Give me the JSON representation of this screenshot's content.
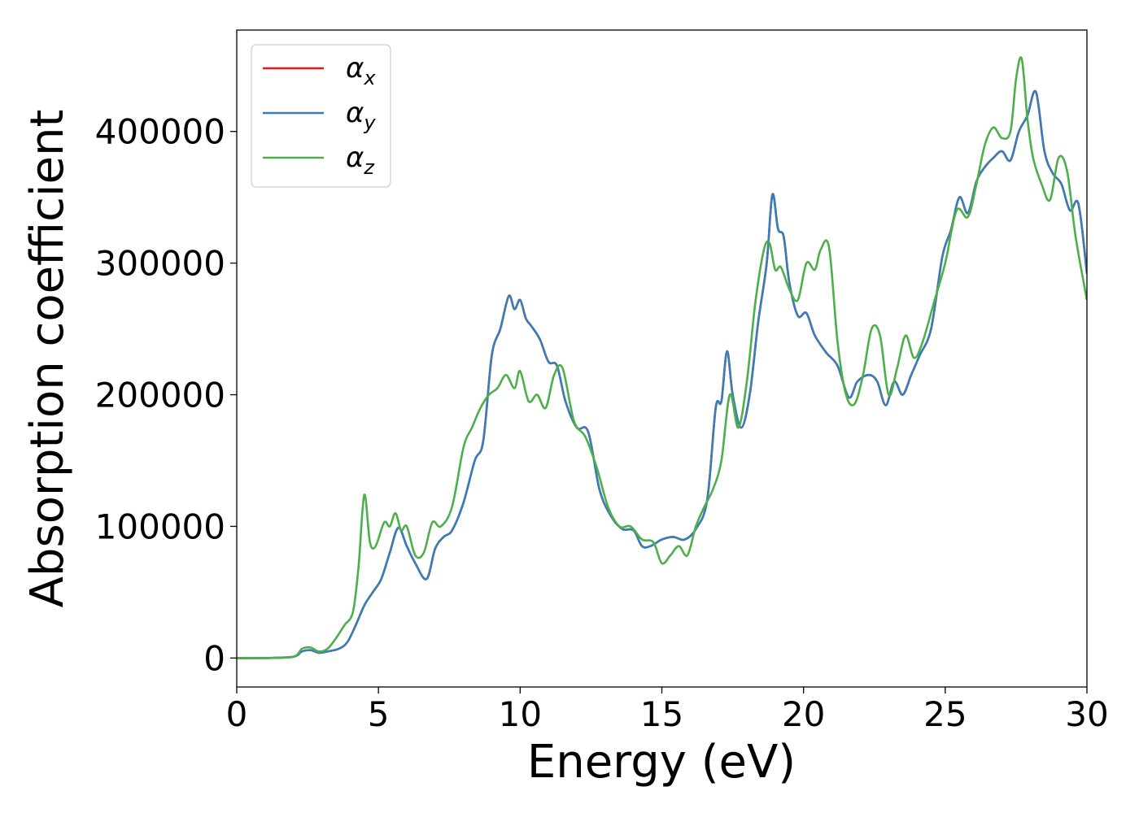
{
  "chart_data": {
    "type": "line",
    "xlabel": "Energy (eV)",
    "ylabel": "Absorption coefficient",
    "xlim": [
      0,
      30
    ],
    "ylim": [
      -22000,
      477000
    ],
    "xticks": [
      0,
      5,
      10,
      15,
      20,
      25,
      30
    ],
    "yticks": [
      0,
      100000,
      200000,
      300000,
      400000
    ],
    "grid": false,
    "legend_position": "top-left",
    "series": [
      {
        "name": "α_x",
        "legend_main": "α",
        "legend_sub": "x",
        "color": "#e41a1c",
        "x": [
          0,
          1,
          2,
          2.3,
          2.6,
          2.9,
          3.2,
          3.6,
          3.9,
          4.2,
          4.5,
          4.8,
          5.1,
          5.4,
          5.7,
          6.0,
          6.3,
          6.7,
          7.0,
          7.3,
          7.6,
          8.0,
          8.4,
          8.7,
          9.0,
          9.3,
          9.6,
          9.8,
          10.0,
          10.2,
          10.4,
          10.7,
          11.0,
          11.3,
          11.6,
          12.0,
          12.4,
          12.8,
          13.2,
          13.6,
          14.0,
          14.3,
          14.6,
          15.0,
          15.4,
          15.8,
          16.2,
          16.6,
          16.9,
          17.1,
          17.3,
          17.5,
          17.8,
          18.1,
          18.4,
          18.7,
          18.9,
          19.1,
          19.3,
          19.5,
          19.8,
          20.1,
          20.4,
          20.8,
          21.2,
          21.6,
          21.9,
          22.3,
          22.6,
          22.9,
          23.2,
          23.5,
          23.8,
          24.1,
          24.5,
          24.9,
          25.2,
          25.5,
          25.8,
          26.1,
          26.4,
          26.7,
          27.0,
          27.3,
          27.6,
          27.9,
          28.2,
          28.5,
          28.8,
          29.1,
          29.4,
          29.7,
          30.0
        ],
        "y": [
          0,
          0,
          1000,
          5000,
          6000,
          4000,
          5000,
          7000,
          12000,
          25000,
          40000,
          50000,
          60000,
          80000,
          99000,
          85000,
          72000,
          60000,
          83000,
          92000,
          97000,
          118000,
          150000,
          165000,
          230000,
          250000,
          275000,
          265000,
          272000,
          258000,
          252000,
          242000,
          225000,
          222000,
          195000,
          175000,
          172000,
          128000,
          108000,
          98000,
          97000,
          85000,
          85000,
          90000,
          92000,
          90000,
          98000,
          120000,
          190000,
          195000,
          233000,
          200000,
          175000,
          200000,
          255000,
          300000,
          352000,
          326000,
          320000,
          285000,
          260000,
          262000,
          245000,
          232000,
          222000,
          198000,
          210000,
          215000,
          210000,
          192000,
          210000,
          200000,
          215000,
          230000,
          250000,
          305000,
          325000,
          350000,
          338000,
          362000,
          373000,
          380000,
          385000,
          378000,
          400000,
          412000,
          430000,
          385000,
          368000,
          360000,
          340000,
          345000,
          292000
        ]
      },
      {
        "name": "α_y",
        "legend_main": "α",
        "legend_sub": "y",
        "color": "#377eb8",
        "x": [
          0,
          1,
          2,
          2.3,
          2.6,
          2.9,
          3.2,
          3.6,
          3.9,
          4.2,
          4.5,
          4.8,
          5.1,
          5.4,
          5.7,
          6.0,
          6.3,
          6.7,
          7.0,
          7.3,
          7.6,
          8.0,
          8.4,
          8.7,
          9.0,
          9.3,
          9.6,
          9.8,
          10.0,
          10.2,
          10.4,
          10.7,
          11.0,
          11.3,
          11.6,
          12.0,
          12.4,
          12.8,
          13.2,
          13.6,
          14.0,
          14.3,
          14.6,
          15.0,
          15.4,
          15.8,
          16.2,
          16.6,
          16.9,
          17.1,
          17.3,
          17.5,
          17.8,
          18.1,
          18.4,
          18.7,
          18.9,
          19.1,
          19.3,
          19.5,
          19.8,
          20.1,
          20.4,
          20.8,
          21.2,
          21.6,
          21.9,
          22.3,
          22.6,
          22.9,
          23.2,
          23.5,
          23.8,
          24.1,
          24.5,
          24.9,
          25.2,
          25.5,
          25.8,
          26.1,
          26.4,
          26.7,
          27.0,
          27.3,
          27.6,
          27.9,
          28.2,
          28.5,
          28.8,
          29.1,
          29.4,
          29.7,
          30.0
        ],
        "y": [
          0,
          0,
          1000,
          5000,
          6000,
          4000,
          5000,
          7000,
          12000,
          25000,
          40000,
          50000,
          60000,
          80000,
          99000,
          85000,
          72000,
          60000,
          83000,
          92000,
          97000,
          118000,
          150000,
          165000,
          230000,
          250000,
          275000,
          265000,
          272000,
          258000,
          252000,
          242000,
          225000,
          222000,
          195000,
          175000,
          172000,
          128000,
          108000,
          98000,
          97000,
          85000,
          85000,
          90000,
          92000,
          90000,
          98000,
          120000,
          190000,
          195000,
          233000,
          200000,
          175000,
          200000,
          255000,
          300000,
          352000,
          326000,
          320000,
          285000,
          260000,
          262000,
          245000,
          232000,
          222000,
          198000,
          210000,
          215000,
          210000,
          192000,
          210000,
          200000,
          215000,
          230000,
          250000,
          305000,
          325000,
          350000,
          338000,
          362000,
          373000,
          380000,
          385000,
          378000,
          400000,
          412000,
          430000,
          385000,
          368000,
          360000,
          340000,
          345000,
          292000
        ]
      },
      {
        "name": "α_z",
        "legend_main": "α",
        "legend_sub": "z",
        "color": "#4daf4a",
        "x": [
          0,
          1,
          2,
          2.3,
          2.6,
          2.9,
          3.2,
          3.5,
          3.8,
          4.1,
          4.3,
          4.5,
          4.7,
          4.9,
          5.2,
          5.4,
          5.6,
          5.8,
          6.0,
          6.3,
          6.6,
          6.9,
          7.2,
          7.6,
          8.0,
          8.3,
          8.6,
          8.9,
          9.2,
          9.5,
          9.8,
          10.0,
          10.3,
          10.6,
          10.9,
          11.2,
          11.5,
          11.9,
          12.3,
          12.7,
          13.1,
          13.5,
          13.9,
          14.3,
          14.7,
          15.0,
          15.3,
          15.6,
          15.9,
          16.2,
          16.5,
          16.8,
          17.1,
          17.4,
          17.7,
          18.0,
          18.3,
          18.6,
          18.8,
          19.0,
          19.2,
          19.5,
          19.8,
          20.1,
          20.4,
          20.6,
          20.9,
          21.2,
          21.5,
          21.8,
          22.1,
          22.4,
          22.7,
          23.0,
          23.3,
          23.6,
          23.9,
          24.2,
          24.6,
          25.0,
          25.4,
          25.8,
          26.1,
          26.4,
          26.7,
          27.0,
          27.3,
          27.5,
          27.7,
          27.9,
          28.1,
          28.4,
          28.7,
          29.0,
          29.3,
          29.6,
          30.0
        ],
        "y": [
          0,
          0,
          1000,
          7000,
          8000,
          5000,
          7000,
          15000,
          25000,
          35000,
          70000,
          124000,
          88000,
          85000,
          103000,
          100000,
          110000,
          97000,
          100000,
          78000,
          80000,
          103000,
          100000,
          115000,
          160000,
          175000,
          190000,
          200000,
          205000,
          215000,
          205000,
          218000,
          195000,
          200000,
          190000,
          215000,
          220000,
          180000,
          168000,
          145000,
          115000,
          100000,
          100000,
          90000,
          88000,
          72000,
          78000,
          85000,
          78000,
          100000,
          115000,
          128000,
          150000,
          200000,
          175000,
          210000,
          270000,
          310000,
          315000,
          295000,
          297000,
          280000,
          272000,
          300000,
          295000,
          310000,
          312000,
          240000,
          200000,
          193000,
          215000,
          250000,
          245000,
          200000,
          220000,
          245000,
          228000,
          240000,
          270000,
          300000,
          340000,
          335000,
          360000,
          390000,
          403000,
          395000,
          400000,
          440000,
          455000,
          410000,
          380000,
          360000,
          348000,
          380000,
          370000,
          320000,
          272000
        ]
      }
    ]
  }
}
